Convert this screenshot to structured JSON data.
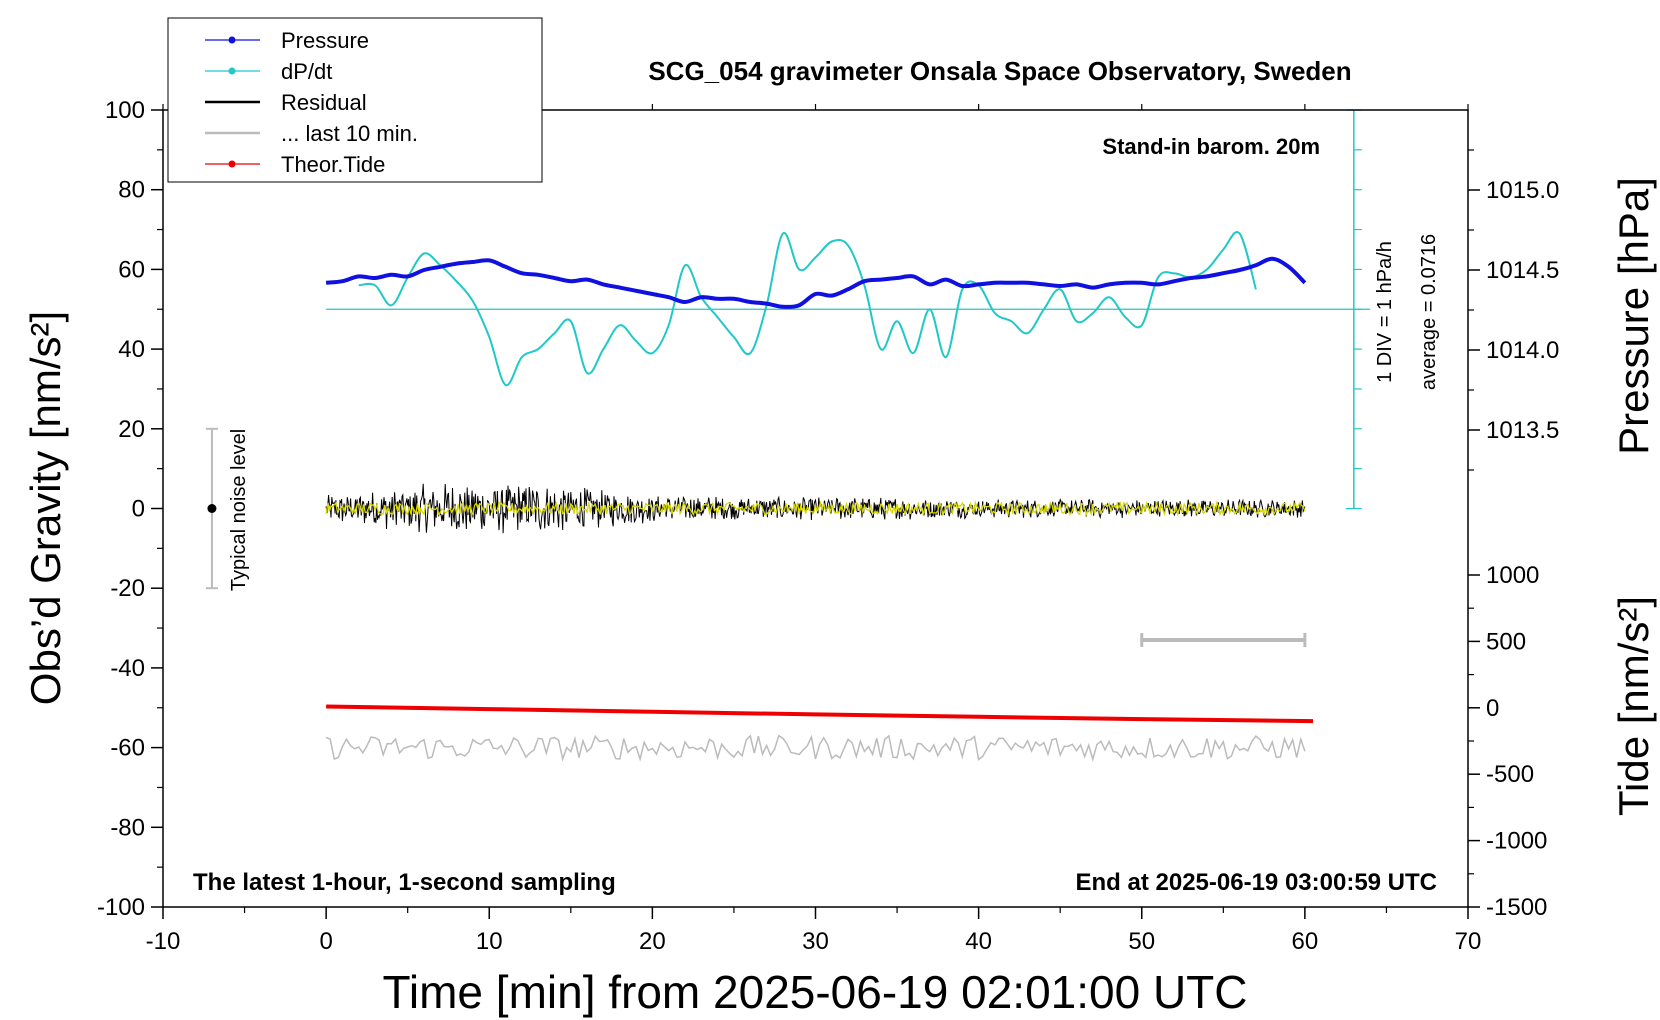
{
  "chart_data": {
    "type": "line",
    "title": "SCG_054 gravimeter Onsala Space Observatory, Sweden",
    "xlabel": "Time [min] from 2025-06-19 02:01:00 UTC",
    "ylabel_left": "Obs’d Gravity [nm/s²]",
    "ylabel_right_top": "Pressure [hPa]",
    "ylabel_right_bottom": "Tide [nm/s²]",
    "xlim": [
      -10,
      70
    ],
    "ylim": [
      -100,
      100
    ],
    "x_ticks": [
      "-10",
      "0",
      "10",
      "20",
      "30",
      "40",
      "50",
      "60",
      "70"
    ],
    "y_ticks": [
      "100",
      "80",
      "60",
      "40",
      "20",
      "0",
      "-20",
      "-40",
      "-60",
      "-80",
      "-100"
    ],
    "pressure_axis": {
      "range": [
        1013.0,
        1015.5
      ],
      "ticks": [
        "1015.0",
        "1014.5",
        "1014.0",
        "1013.5"
      ]
    },
    "tide_axis": {
      "range": [
        -1500,
        1000
      ],
      "ticks": [
        "1000",
        "500",
        "0",
        "-500",
        "-1000",
        "-1500"
      ]
    },
    "legend": {
      "placement": "top-left",
      "entries": [
        {
          "label": "Pressure",
          "color": "#1010e0",
          "marker": "dot"
        },
        {
          "label": "dP/dt",
          "color": "#20c8c8",
          "marker": "dot"
        },
        {
          "label": "Residual",
          "color": "#000000",
          "marker": "none"
        },
        {
          "label": "... last 10 min.",
          "color": "#bbbbbb",
          "marker": "none"
        },
        {
          "label": "Theor.Tide",
          "color": "#ee0000",
          "marker": "dot"
        }
      ]
    },
    "annotations": {
      "barometer": "Stand-in barom. 20m",
      "dpdt_scale": "1 DIV = 1 hPa/h",
      "dpdt_average": "average = 0.0716",
      "noise": "Typical noise level",
      "sampling": "The latest 1-hour, 1-second sampling",
      "end_time": "End at 2025-06-19 03:00:59 UTC"
    },
    "noise_bar": {
      "x": -7,
      "y_range": [
        -20,
        20
      ]
    },
    "last10_bar": {
      "x_range": [
        50,
        60
      ],
      "y": -33
    },
    "dpdt_scale_axis": {
      "x": 63,
      "y_range": [
        0,
        100
      ]
    },
    "series": [
      {
        "name": "Pressure",
        "axis": "pressure",
        "color": "#1010e0",
        "x": [
          0,
          1,
          2,
          3,
          4,
          5,
          6,
          7,
          8,
          9,
          10,
          11,
          12,
          13,
          14,
          15,
          16,
          17,
          18,
          19,
          20,
          21,
          22,
          23,
          24,
          25,
          26,
          27,
          28,
          29,
          30,
          31,
          32,
          33,
          34,
          35,
          36,
          37,
          38,
          39,
          40,
          41,
          42,
          43,
          44,
          45,
          46,
          47,
          48,
          49,
          50,
          51,
          52,
          53,
          54,
          55,
          56,
          57,
          58,
          59,
          60
        ],
        "values": [
          1014.42,
          1014.43,
          1014.46,
          1014.45,
          1014.47,
          1014.46,
          1014.5,
          1014.52,
          1014.54,
          1014.55,
          1014.56,
          1014.52,
          1014.48,
          1014.47,
          1014.45,
          1014.43,
          1014.44,
          1014.41,
          1014.39,
          1014.37,
          1014.35,
          1014.33,
          1014.3,
          1014.33,
          1014.32,
          1014.32,
          1014.3,
          1014.29,
          1014.27,
          1014.28,
          1014.35,
          1014.34,
          1014.38,
          1014.43,
          1014.44,
          1014.45,
          1014.46,
          1014.41,
          1014.44,
          1014.4,
          1014.41,
          1014.42,
          1014.42,
          1014.42,
          1014.41,
          1014.4,
          1014.41,
          1014.39,
          1014.41,
          1014.42,
          1014.42,
          1014.41,
          1014.43,
          1014.45,
          1014.46,
          1014.48,
          1014.5,
          1014.53,
          1014.57,
          1014.52,
          1014.42
        ]
      },
      {
        "name": "dP/dt",
        "axis": "gravity",
        "color": "#20c8c8",
        "x": [
          2,
          3,
          4,
          5,
          6,
          7,
          8,
          9,
          10,
          11,
          12,
          13,
          14,
          15,
          16,
          17,
          18,
          19,
          20,
          21,
          22,
          23,
          24,
          25,
          26,
          27,
          28,
          29,
          30,
          31,
          32,
          33,
          34,
          35,
          36,
          37,
          38,
          39,
          40,
          41,
          42,
          43,
          44,
          45,
          46,
          47,
          48,
          49,
          50,
          51,
          52,
          53,
          54,
          55,
          56,
          57
        ],
        "values": [
          56,
          56,
          51,
          58,
          64,
          61,
          57,
          52,
          43,
          31,
          38,
          40,
          44,
          47,
          34,
          40,
          46,
          42,
          39,
          46,
          61,
          53,
          48,
          43,
          39,
          51,
          69,
          60,
          63,
          67,
          66,
          56,
          40,
          47,
          39,
          50,
          38,
          55,
          56,
          49,
          47,
          44,
          50,
          55,
          47,
          49,
          53,
          48,
          46,
          58,
          59,
          58,
          60,
          65,
          69,
          55
        ]
      },
      {
        "name": "Residual",
        "axis": "gravity",
        "color": "#000000",
        "x_range": [
          0,
          60
        ],
        "amplitude_profile": {
          "x": [
            0,
            5,
            10,
            15,
            20,
            25,
            30,
            35,
            40,
            45,
            50,
            55,
            60
          ],
          "amplitude": [
            3,
            5,
            6,
            5,
            3,
            2.5,
            2.5,
            2.5,
            2,
            2,
            2,
            2,
            2
          ]
        }
      },
      {
        "name": "... last 10 min.",
        "axis": "gravity",
        "color": "#bbbbbb",
        "x_range": [
          0,
          60
        ],
        "baseline": -60,
        "amplitude": 3
      },
      {
        "name": "Theor.Tide",
        "axis": "tide",
        "color": "#ee0000",
        "x": [
          0,
          10,
          20,
          30,
          40,
          50,
          60.5
        ],
        "values": [
          10,
          -10,
          -30,
          -50,
          -68,
          -85,
          -100
        ]
      },
      {
        "name": "Residual (smoothed)",
        "axis": "gravity",
        "color": "#d8d800",
        "x_range": [
          0,
          60
        ],
        "amplitude": 1.5
      }
    ],
    "dpdt_reference_line": {
      "y": 50,
      "x_range": [
        0,
        64
      ]
    }
  }
}
